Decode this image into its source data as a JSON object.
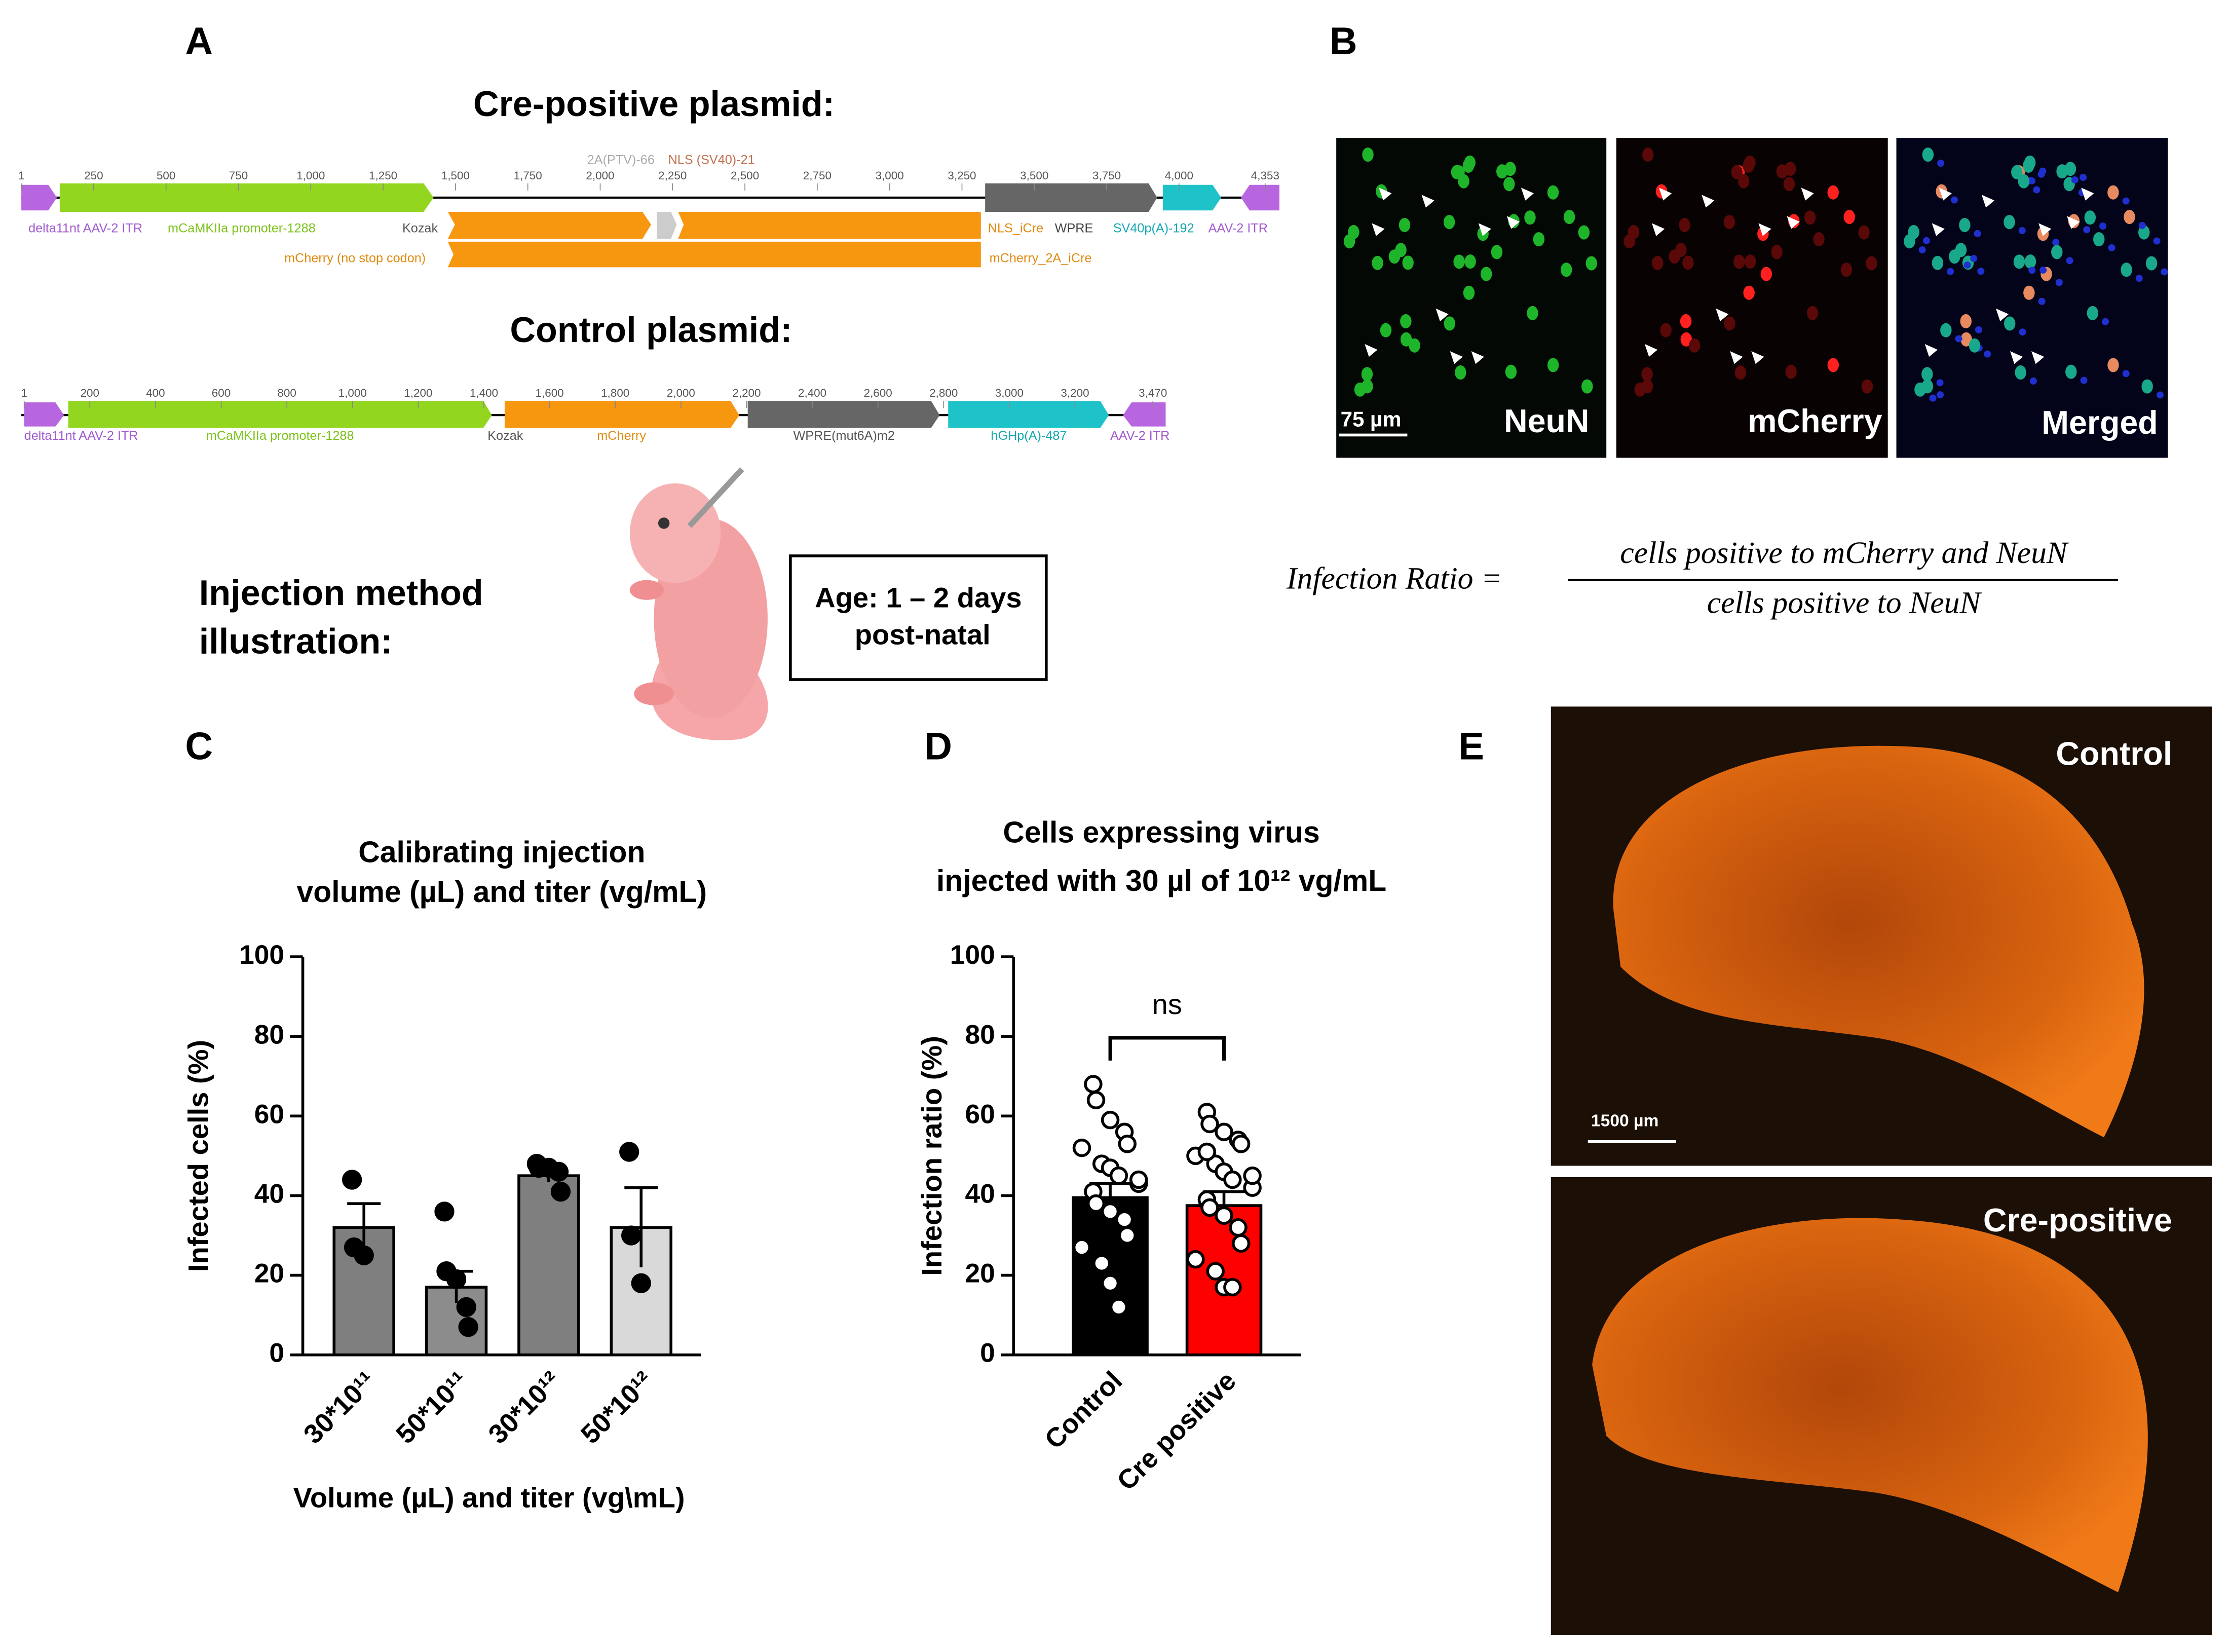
{
  "panel_labels": {
    "a": "A",
    "b": "B",
    "c": "C",
    "d": "D",
    "e": "E"
  },
  "plasmids": [
    {
      "title": "Cre-positive plasmid:",
      "positions": [
        "1",
        "250",
        "500",
        "750",
        "1,000",
        "1,250",
        "1,500",
        "1,750",
        "2,000",
        "2,250",
        "2,500",
        "2,750",
        "3,000",
        "3,250",
        "3,500",
        "3,750",
        "4,000",
        "4,353"
      ],
      "features": [
        "delta11nt AAV-2 ITR",
        "mCaMKIIa promoter-1288",
        "Kozak",
        "NLS_iCre",
        "WPRE",
        "SV40p(A)-192",
        "AAV-2 ITR",
        "mCherry (no stop codon)",
        "mCherry_2A_iCre",
        "2A(PTV)-66",
        "NLS (SV40)-21"
      ]
    },
    {
      "title": "Control plasmid:",
      "positions": [
        "1",
        "200",
        "400",
        "600",
        "800",
        "1,000",
        "1,200",
        "1,400",
        "1,600",
        "1,800",
        "2,000",
        "2,200",
        "2,400",
        "2,600",
        "2,800",
        "3,000",
        "3,200",
        "3,470"
      ],
      "features": [
        "delta11nt AAV-2 ITR",
        "mCaMKIIa promoter-1288",
        "Kozak",
        "mCherry",
        "WPRE(mut6A)m2",
        "hGHp(A)-487",
        "AAV-2 ITR"
      ]
    }
  ],
  "injection": {
    "title": [
      "Injection method",
      "illustration:"
    ],
    "age": [
      "Age: 1 – 2 days",
      "post-natal"
    ]
  },
  "microscopy": {
    "channels": [
      "NeuN",
      "mCherry",
      "Merged"
    ],
    "scale_bar": "75 µm"
  },
  "formula": {
    "lhs": "Infection Ratio =",
    "numerator": "cells positive to mCherry and NeuN",
    "denominator": "cells positive to NeuN"
  },
  "sections": {
    "labels": [
      "Control",
      "Cre-positive"
    ],
    "scale_bar": "1500 µm"
  },
  "chart_data": [
    {
      "type": "bar",
      "title": [
        "Calibrating injection",
        "volume (µL) and titer (vg/mL)"
      ],
      "xlabel": "Volume (µL) and titer (vg\\mL)",
      "ylabel": "Infected cells (%)",
      "categories": [
        "30*10¹¹",
        "50*10¹¹",
        "30*10¹²",
        "50*10¹²"
      ],
      "values": [
        32,
        17,
        45,
        32
      ],
      "errors": [
        6,
        4,
        1.5,
        10
      ],
      "points": [
        [
          44,
          27,
          25
        ],
        [
          36,
          21,
          19,
          12,
          7
        ],
        [
          48,
          47,
          47,
          46,
          41
        ],
        [
          51,
          30,
          18
        ]
      ],
      "colors": [
        "#7f7f7f",
        "#8c8c8c",
        "#7f7f7f",
        "#d9d9d9"
      ],
      "point_color": "#000000",
      "ylim": [
        0,
        100
      ],
      "yticks": [
        0,
        20,
        40,
        60,
        80,
        100
      ]
    },
    {
      "type": "bar",
      "title": [
        "Cells expressing virus",
        "injected with 30 µl of 10¹² vg/mL"
      ],
      "ylabel": "Infection ratio (%)",
      "categories": [
        "Control",
        "Cre positive"
      ],
      "values": [
        39.5,
        37.5
      ],
      "errors": [
        3.5,
        3.5
      ],
      "points": [
        [
          68,
          64,
          59,
          56,
          53,
          52,
          48,
          47,
          45,
          43,
          41,
          38,
          36,
          34,
          30,
          27,
          23,
          18,
          12,
          44
        ],
        [
          61,
          58,
          56,
          54,
          53,
          50,
          48,
          46,
          44,
          42,
          39,
          37,
          35,
          32,
          28,
          24,
          21,
          17,
          17,
          45,
          51
        ]
      ],
      "colors": [
        "#000000",
        "#ff0000"
      ],
      "point_color": "#ffffff",
      "annotation": "ns",
      "ylim": [
        0,
        100
      ],
      "yticks": [
        0,
        20,
        40,
        60,
        80,
        100
      ]
    }
  ]
}
